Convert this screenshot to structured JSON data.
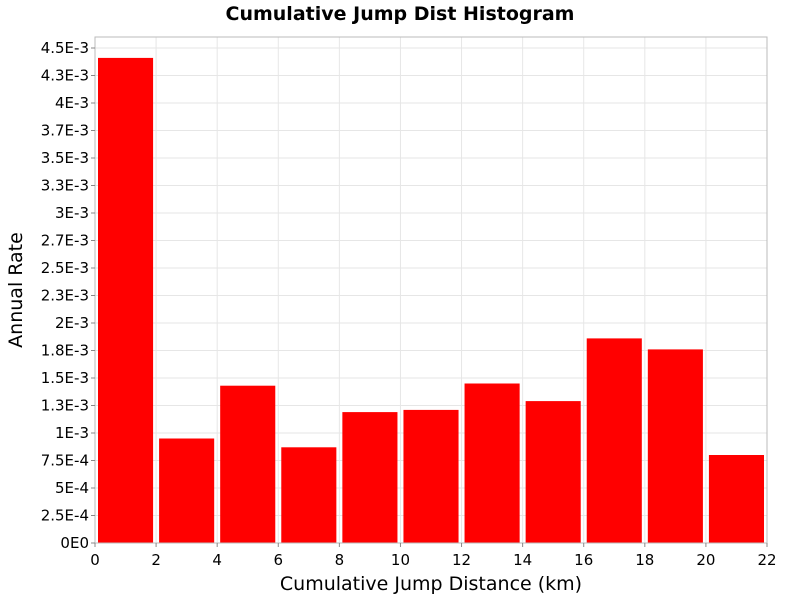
{
  "chart_data": {
    "type": "bar",
    "title": "Cumulative Jump Dist Histogram",
    "xlabel": "Cumulative Jump Distance (km)",
    "ylabel": "Annual Rate",
    "xlim": [
      0,
      22
    ],
    "ylim": [
      0,
      0.0046
    ],
    "grid": true,
    "bar_color": "#ff0000",
    "x_ticks": [
      0,
      2,
      4,
      6,
      8,
      10,
      12,
      14,
      16,
      18,
      20,
      22
    ],
    "x_tick_labels": [
      "0",
      "2",
      "4",
      "6",
      "8",
      "10",
      "12",
      "14",
      "16",
      "18",
      "20",
      "22"
    ],
    "y_ticks": [
      0,
      0.00025,
      0.0005,
      0.00075,
      0.001,
      0.00125,
      0.0015,
      0.00175,
      0.002,
      0.00225,
      0.0025,
      0.00275,
      0.003,
      0.00325,
      0.0035,
      0.00375,
      0.004,
      0.00425,
      0.0045
    ],
    "y_tick_labels": [
      "0E0",
      "2.5E-4",
      "5E-4",
      "7.5E-4",
      "1E-3",
      "1.3E-3",
      "1.5E-3",
      "1.8E-3",
      "2E-3",
      "2.3E-3",
      "2.5E-3",
      "2.7E-3",
      "3E-3",
      "3.3E-3",
      "3.5E-3",
      "3.7E-3",
      "4E-3",
      "4.3E-3",
      "4.5E-3"
    ],
    "categories": [
      1,
      3,
      5,
      7,
      9,
      11,
      13,
      15,
      17,
      19,
      21
    ],
    "bin_width": 2,
    "values": [
      0.00441,
      0.00095,
      0.00143,
      0.00087,
      0.00119,
      0.00121,
      0.00145,
      0.00129,
      0.00186,
      0.00176,
      0.0008
    ]
  }
}
